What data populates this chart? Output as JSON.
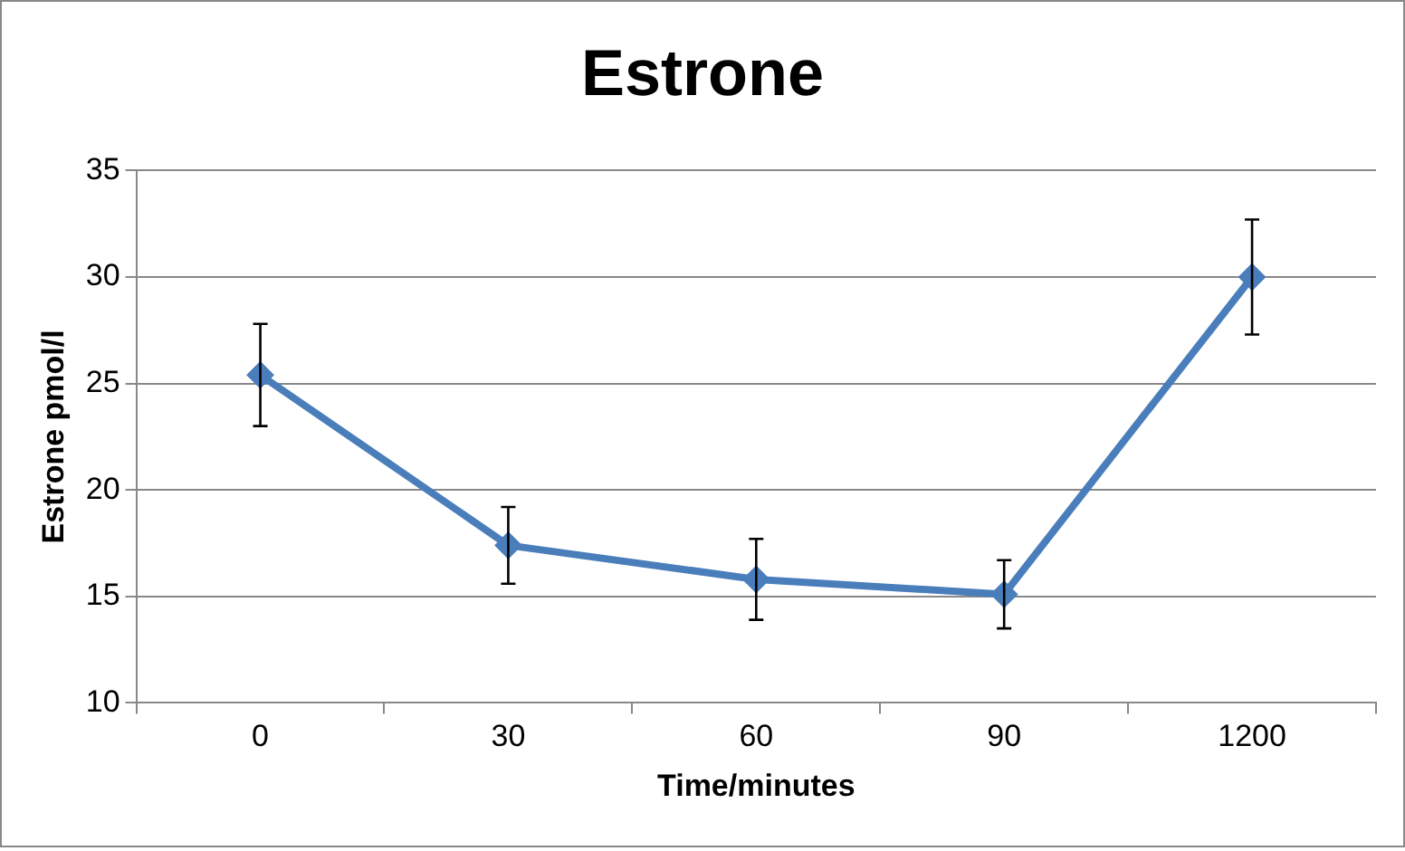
{
  "chart_data": {
    "type": "line",
    "title": "Estrone",
    "xlabel": "Time/minutes",
    "ylabel": "Estrone pmol/l",
    "categories": [
      "0",
      "30",
      "60",
      "90",
      "1200"
    ],
    "series": [
      {
        "color": "#4a7ebb",
        "values": [
          25.4,
          17.4,
          15.8,
          15.1,
          30.0
        ],
        "errors": [
          2.4,
          1.8,
          1.9,
          1.6,
          2.7
        ]
      }
    ],
    "ylim": [
      10,
      35
    ],
    "yticks": [
      10,
      15,
      20,
      25,
      30,
      35
    ],
    "grid": "y",
    "legend": false,
    "marker": "diamond",
    "line_style": "solid"
  }
}
